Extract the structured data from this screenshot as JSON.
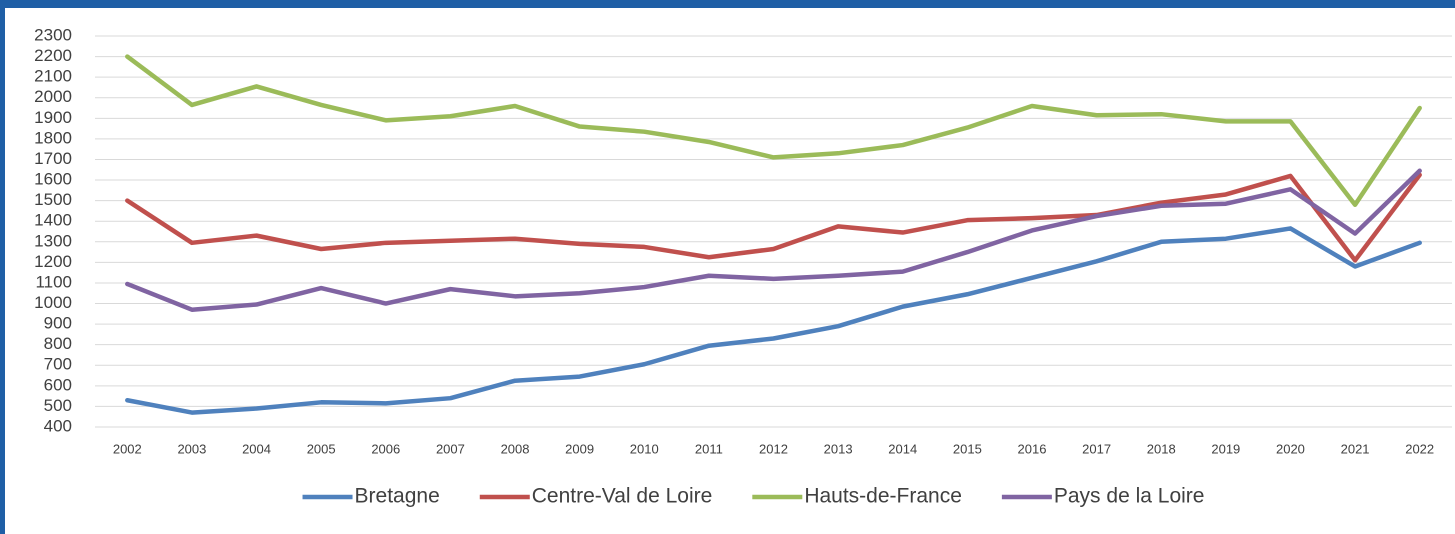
{
  "chart_data": {
    "type": "line",
    "categories": [
      "2002",
      "2003",
      "2004",
      "2005",
      "2006",
      "2007",
      "2008",
      "2009",
      "2010",
      "2011",
      "2012",
      "2013",
      "2014",
      "2015",
      "2016",
      "2017",
      "2018",
      "2019",
      "2020",
      "2021",
      "2022"
    ],
    "series": [
      {
        "name": "Bretagne",
        "color": "#4f81bd",
        "values": [
          530,
          470,
          490,
          520,
          515,
          540,
          625,
          645,
          705,
          795,
          830,
          890,
          985,
          1045,
          1125,
          1205,
          1300,
          1315,
          1365,
          1180,
          1295
        ]
      },
      {
        "name": "Centre-Val de Loire",
        "color": "#c0504d",
        "values": [
          1500,
          1295,
          1330,
          1265,
          1295,
          1305,
          1315,
          1290,
          1275,
          1225,
          1265,
          1375,
          1345,
          1405,
          1415,
          1430,
          1490,
          1530,
          1620,
          1210,
          1625
        ]
      },
      {
        "name": "Hauts-de-France",
        "color": "#9bbb59",
        "values": [
          2200,
          1965,
          2055,
          1965,
          1890,
          1910,
          1960,
          1860,
          1835,
          1785,
          1710,
          1730,
          1770,
          1855,
          1960,
          1915,
          1920,
          1885,
          1885,
          1480,
          1950
        ]
      },
      {
        "name": "Pays de la Loire",
        "color": "#8064a2",
        "values": [
          1095,
          970,
          995,
          1075,
          1000,
          1070,
          1035,
          1050,
          1080,
          1135,
          1120,
          1135,
          1155,
          1250,
          1355,
          1425,
          1475,
          1485,
          1555,
          1340,
          1645
        ]
      }
    ],
    "ylim": [
      400,
      2300
    ],
    "yticks": [
      400,
      500,
      600,
      700,
      800,
      900,
      1000,
      1100,
      1200,
      1300,
      1400,
      1500,
      1600,
      1700,
      1800,
      1900,
      2000,
      2100,
      2200,
      2300
    ],
    "grid": true,
    "legend": "bottom"
  }
}
